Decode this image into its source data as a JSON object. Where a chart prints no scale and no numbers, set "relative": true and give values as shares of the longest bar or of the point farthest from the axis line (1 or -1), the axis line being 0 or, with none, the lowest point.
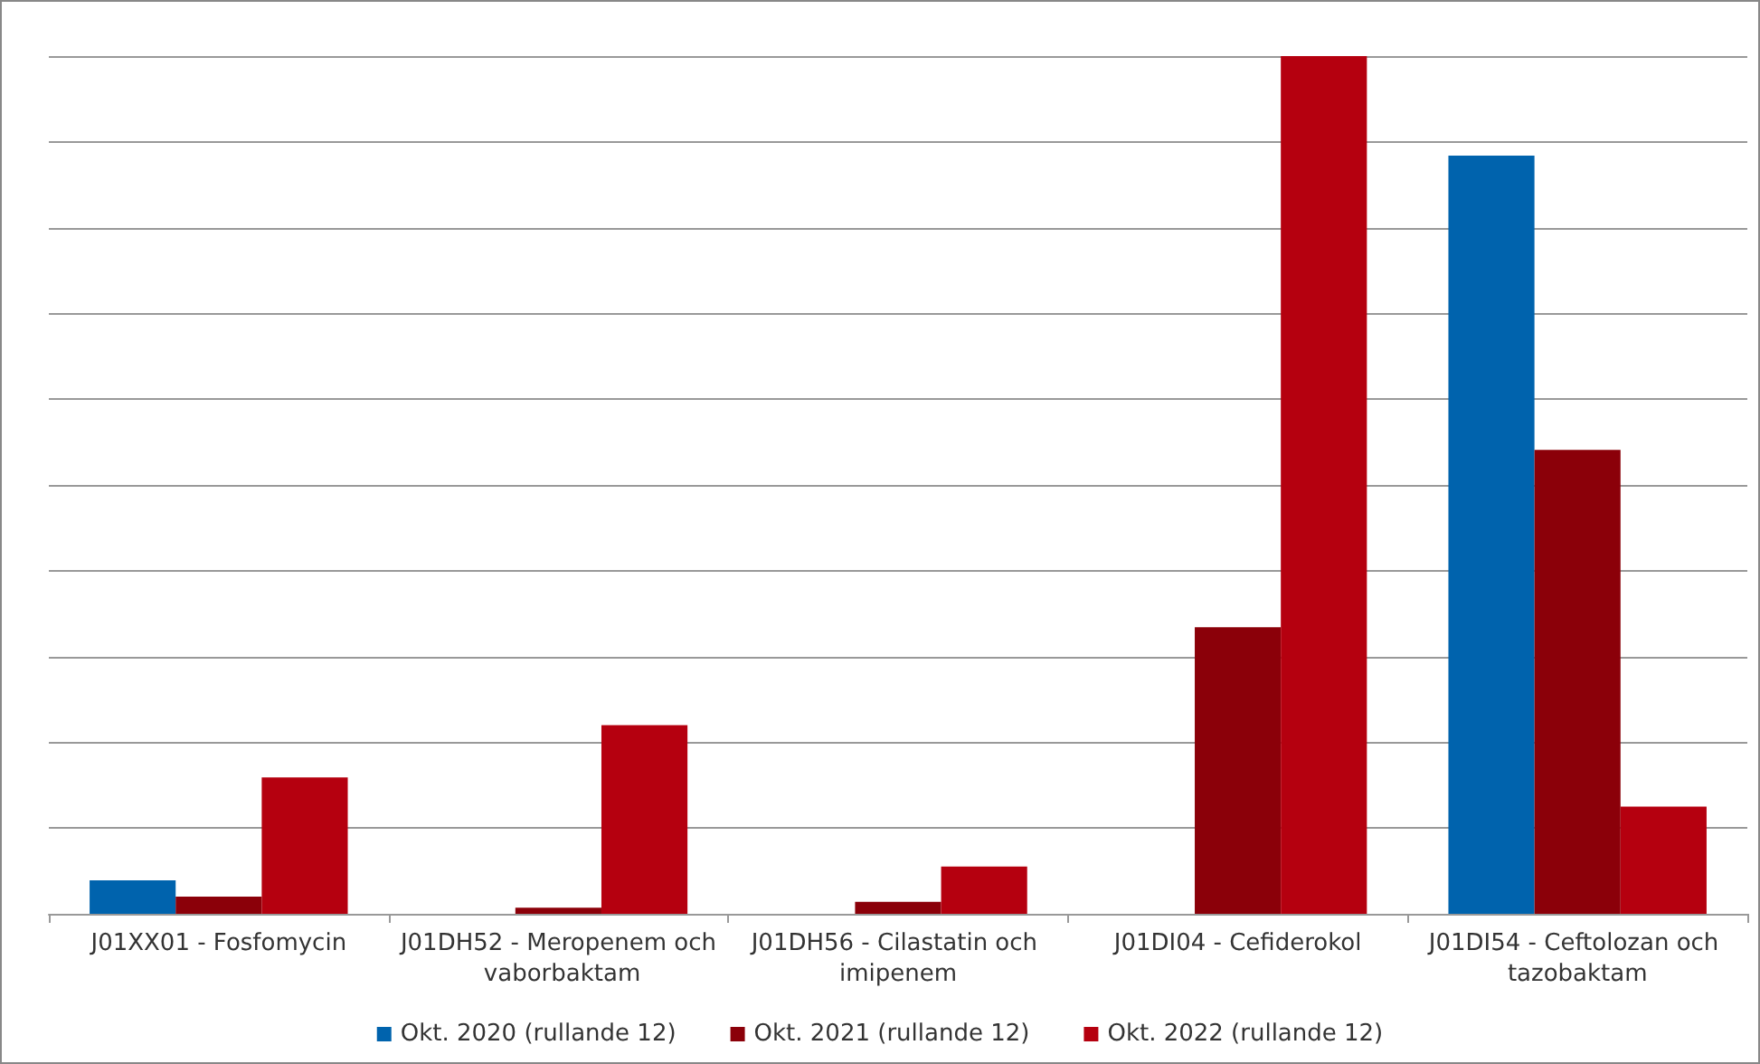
{
  "chart_data": {
    "type": "bar",
    "relative": true,
    "grid": "y",
    "legend": "bottom",
    "categories": [
      "J01XX01 - Fosfomycin",
      "J01DH52 - Meropenem och vaborbaktam",
      "J01DH56 - Cilastatin och imipenem",
      "J01DI04 - Cefiderokol",
      "J01DI54 - Ceftolozan och tazobaktam"
    ],
    "series": [
      {
        "name": "Okt. 2020 (rullande 12)",
        "color": "#0063ad",
        "values": [
          0.039,
          0,
          0,
          0,
          0.884
        ]
      },
      {
        "name": "Okt. 2021 (rullande 12)",
        "color": "#8b0009",
        "values": [
          0.02,
          0.007,
          0.014,
          0.334,
          0.541
        ]
      },
      {
        "name": "Okt. 2022 (rullande 12)",
        "color": "#b5000f",
        "values": [
          0.159,
          0.22,
          0.055,
          1,
          0.125
        ]
      }
    ]
  }
}
